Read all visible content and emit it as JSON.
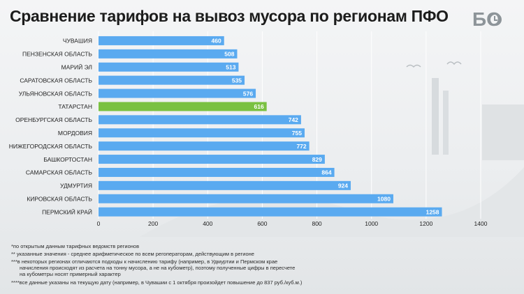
{
  "header": {
    "title": "Сравнение тарифов на вывоз мусора по регионам ПФО",
    "logo": "БО"
  },
  "colors": {
    "bar": "#5aaaf0",
    "bar_highlight": "#7ac142",
    "grid": "#ffffff",
    "label": "#222222"
  },
  "chart_data": {
    "type": "bar",
    "orientation": "horizontal",
    "categories": [
      "ЧУВАШИЯ",
      "ПЕНЗЕНСКАЯ ОБЛАСТЬ",
      "МАРИЙ ЭЛ",
      "САРАТОВСКАЯ ОБЛАСТЬ",
      "УЛЬЯНОВСКАЯ ОБЛАСТЬ",
      "ТАТАРСТАН",
      "ОРЕНБУРГСКАЯ ОБЛАСТЬ",
      "МОРДОВИЯ",
      "НИЖЕГОРОДСКАЯ ОБЛАСТЬ",
      "БАШКОРТОСТАН",
      "САМАРСКАЯ ОБЛАСТЬ",
      "УДМУРТИЯ",
      "КИРОВСКАЯ ОБЛАСТЬ",
      "ПЕРМСКИЙ КРАЙ"
    ],
    "values": [
      460,
      508,
      513,
      535,
      576,
      616,
      742,
      755,
      772,
      829,
      864,
      924,
      1080,
      1258
    ],
    "highlight": "ТАТАРСТАН",
    "xlim": [
      0,
      1400
    ],
    "xticks": [
      0,
      200,
      400,
      600,
      800,
      1000,
      1200,
      1400
    ],
    "grid": true
  },
  "footnotes": [
    "*по открытым данным тарифных ведомств регионов",
    "** указанные значения - среднее арифметическое по всем регоператорам, действующим в регионе",
    "***в некоторых регионах отличаются подходы к начислению тарифу (например, в Удмуртии и Пермском крае",
    "начисления происходят из расчета на тонну мусора, а не на кубометр), поэтому полученные цифры в пересчете",
    "на кубометры носят примерный характер",
    "****все данные указаны на текущую дату (например, в Чувашии с 1 октября произойдет повышение до 837 руб./куб.м.)"
  ]
}
